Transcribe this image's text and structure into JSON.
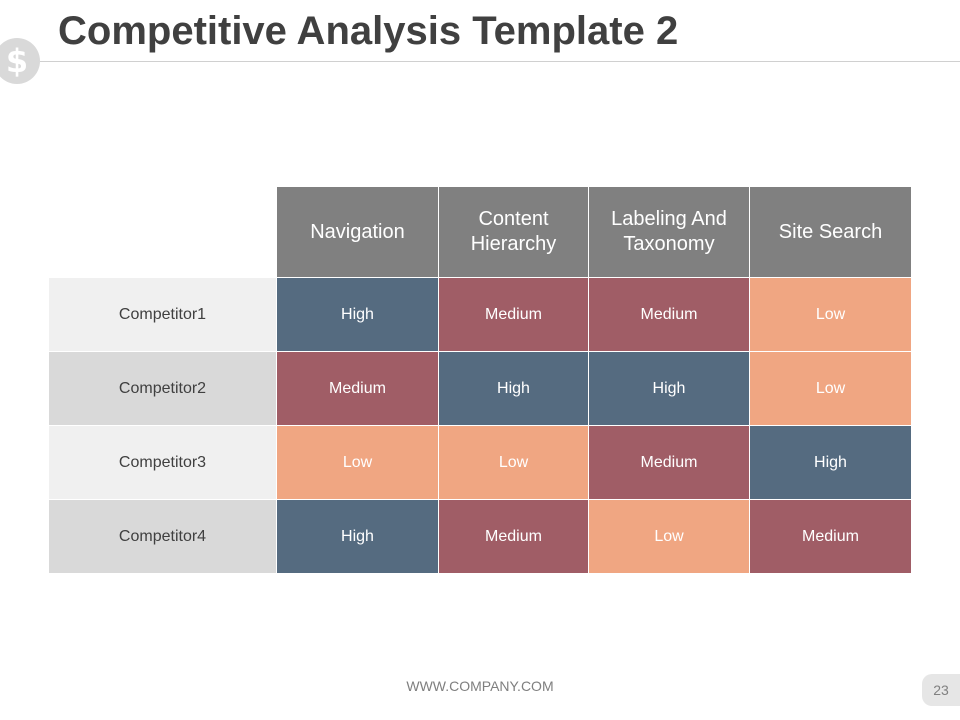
{
  "slide": {
    "title": "Competitive Analysis Template 2",
    "logo_glyph": "$",
    "logo_icon": "dollar-icon",
    "footer_url": "WWW.COMPANY.COM",
    "page_number": "23"
  },
  "table": {
    "columns": [
      "Navigation",
      "Content Hierarchy",
      "Labeling And Taxonomy",
      "Site Search"
    ],
    "rows": [
      {
        "label": "Competitor1",
        "values": [
          "High",
          "Medium",
          "Medium",
          "Low"
        ]
      },
      {
        "label": "Competitor2",
        "values": [
          "Medium",
          "High",
          "High",
          "Low"
        ]
      },
      {
        "label": "Competitor3",
        "values": [
          "Low",
          "Low",
          "Medium",
          "High"
        ]
      },
      {
        "label": "Competitor4",
        "values": [
          "High",
          "Medium",
          "Low",
          "Medium"
        ]
      }
    ]
  },
  "colors": {
    "High": "#556b80",
    "Medium": "#a05d66",
    "Low": "#f0a682",
    "header": "#808080"
  }
}
